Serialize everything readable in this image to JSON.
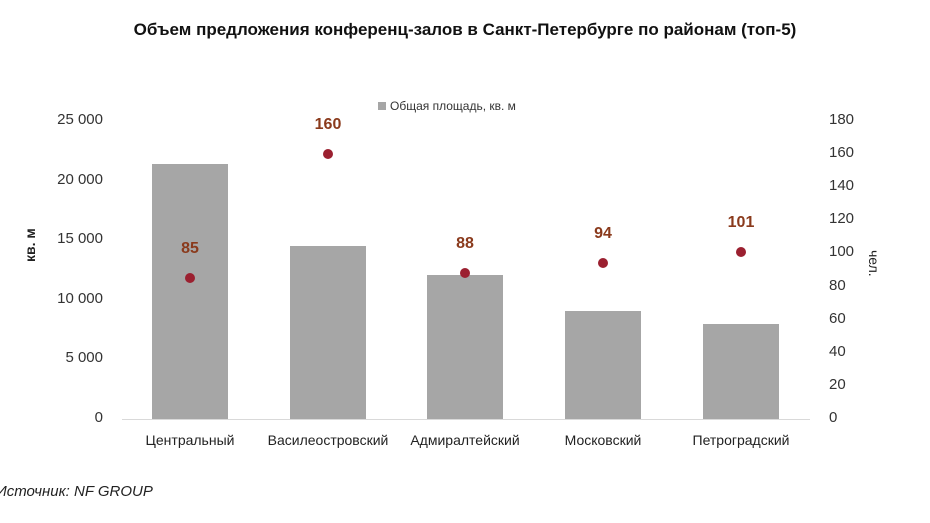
{
  "chart_data": {
    "type": "bar",
    "title": "Объем предложения конференц-залов в Санкт-Петербурге по районам (топ-5)",
    "categories": [
      "Центральный",
      "Василеостровский",
      "Адмиралтейский",
      "Московский",
      "Петроградский"
    ],
    "series": [
      {
        "name": "Общая площадь, кв. м",
        "type": "bar",
        "axis": "left",
        "values": [
          21400,
          14500,
          12100,
          9100,
          8000
        ],
        "color": "#a6a6a6"
      },
      {
        "name": "чел.",
        "type": "scatter",
        "axis": "right",
        "values": [
          85,
          160,
          88,
          94,
          101
        ],
        "color": "#9b2030",
        "labels": [
          "85",
          "160",
          "88",
          "94",
          "101"
        ]
      }
    ],
    "ylabel": "кв. м",
    "ylabel_right": "чел.",
    "ylim": [
      0,
      25000
    ],
    "ylim_right": [
      0,
      180
    ],
    "yticks": [
      "0",
      "5 000",
      "10 000",
      "15 000",
      "20 000",
      "25 000"
    ],
    "yticks_right": [
      "0",
      "20",
      "40",
      "60",
      "80",
      "100",
      "120",
      "140",
      "160",
      "180"
    ],
    "legend": [
      "Общая площадь, кв. м"
    ],
    "legend_position": "top",
    "grid": false
  },
  "title": "Объем предложения конференц-залов в Санкт-Петербурге по районам (топ-5)",
  "legend_label": "Общая площадь, кв. м",
  "ylabel_left": "кв. м",
  "ylabel_right": "чел.",
  "source": "Источник: NF GROUP"
}
